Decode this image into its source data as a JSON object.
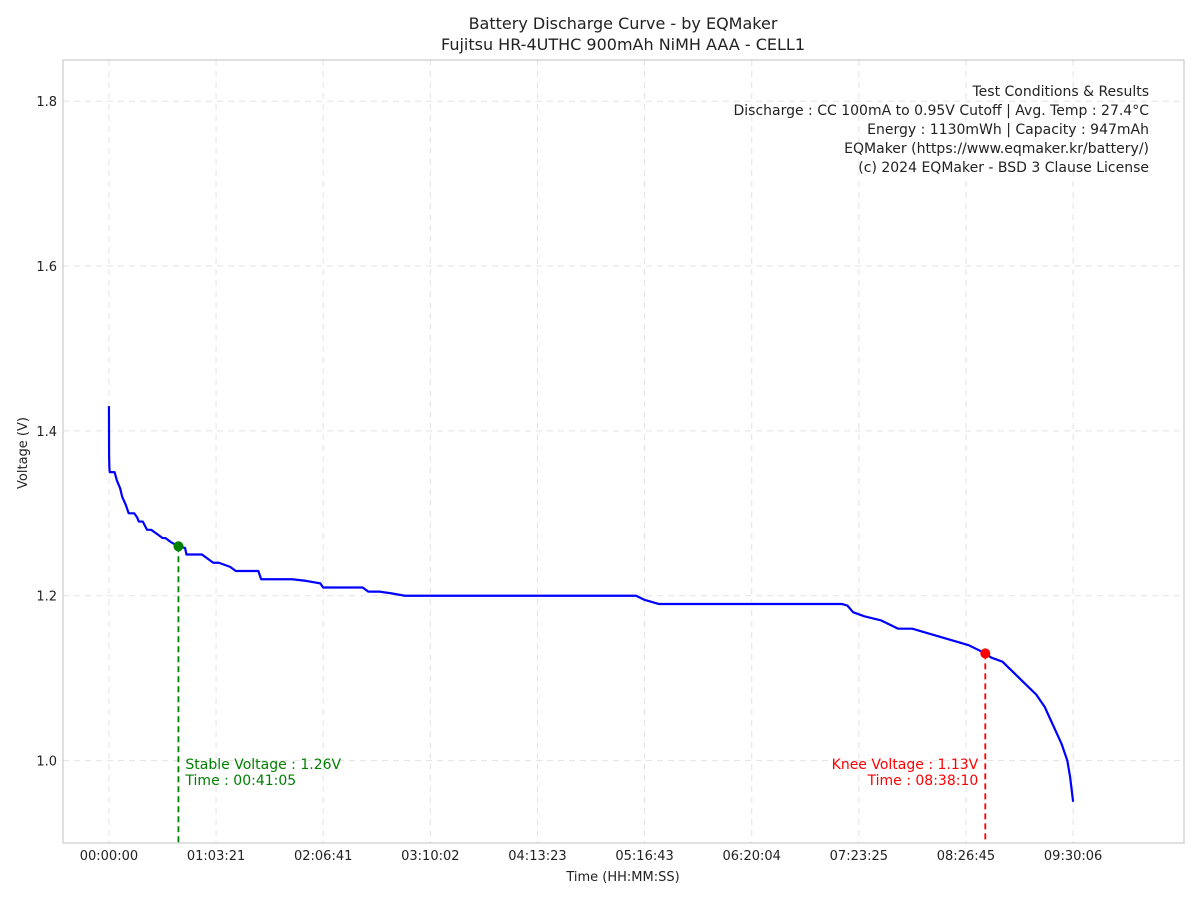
{
  "chart_data": {
    "type": "line",
    "title": "Battery Discharge Curve - by EQMaker",
    "subtitle": "Fujitsu HR-4UTHC 900mAh NiMH AAA - CELL1",
    "xlabel": "Time (HH:MM:SS)",
    "ylabel": "Voltage (V)",
    "xlim": [
      -1630,
      38140
    ],
    "ylim": [
      0.9,
      1.85
    ],
    "grid": true,
    "x_ticks": [
      {
        "value": 0,
        "label": "00:00:00"
      },
      {
        "value": 3801,
        "label": "01:03:21"
      },
      {
        "value": 7601,
        "label": "02:06:41"
      },
      {
        "value": 11402,
        "label": "03:10:02"
      },
      {
        "value": 15203,
        "label": "04:13:23"
      },
      {
        "value": 19003,
        "label": "05:16:43"
      },
      {
        "value": 22804,
        "label": "06:20:04"
      },
      {
        "value": 26605,
        "label": "07:23:25"
      },
      {
        "value": 30405,
        "label": "08:26:45"
      },
      {
        "value": 34206,
        "label": "09:30:06"
      }
    ],
    "y_ticks": [
      {
        "value": 1.0,
        "label": "1.0"
      },
      {
        "value": 1.2,
        "label": "1.2"
      },
      {
        "value": 1.4,
        "label": "1.4"
      },
      {
        "value": 1.6,
        "label": "1.6"
      },
      {
        "value": 1.8,
        "label": "1.8"
      }
    ],
    "series": [
      {
        "name": "Voltage",
        "color": "#0000ff",
        "x_seconds": [
          0,
          5,
          15,
          30,
          90,
          200,
          280,
          400,
          470,
          600,
          700,
          800,
          900,
          1000,
          1060,
          1200,
          1350,
          1500,
          1700,
          1900,
          2000,
          2200,
          2465,
          2700,
          2750,
          3000,
          3300,
          3500,
          3700,
          3900,
          4300,
          4500,
          5000,
          5300,
          5400,
          5700,
          6000,
          6500,
          7000,
          7500,
          7600,
          7700,
          8000,
          8500,
          9000,
          9200,
          9600,
          10000,
          10500,
          11000,
          11500,
          12000,
          13000,
          14000,
          15000,
          16000,
          17000,
          18000,
          18700,
          19000,
          19500,
          20000,
          21000,
          22000,
          23000,
          24000,
          25000,
          25500,
          26000,
          26200,
          26400,
          26800,
          27400,
          28000,
          28500,
          29000,
          29500,
          30000,
          30500,
          30800,
          31090,
          31300,
          31700,
          32000,
          32300,
          32600,
          32900,
          33200,
          33400,
          33600,
          33800,
          34000,
          34100,
          34206
        ],
        "voltage": [
          1.43,
          1.37,
          1.355,
          1.35,
          1.35,
          1.35,
          1.34,
          1.33,
          1.32,
          1.31,
          1.3,
          1.3,
          1.3,
          1.295,
          1.29,
          1.29,
          1.28,
          1.28,
          1.275,
          1.27,
          1.27,
          1.265,
          1.26,
          1.258,
          1.25,
          1.25,
          1.25,
          1.245,
          1.24,
          1.24,
          1.235,
          1.23,
          1.23,
          1.23,
          1.22,
          1.22,
          1.22,
          1.22,
          1.218,
          1.215,
          1.21,
          1.21,
          1.21,
          1.21,
          1.21,
          1.205,
          1.205,
          1.203,
          1.2,
          1.2,
          1.2,
          1.2,
          1.2,
          1.2,
          1.2,
          1.2,
          1.2,
          1.2,
          1.2,
          1.195,
          1.19,
          1.19,
          1.19,
          1.19,
          1.19,
          1.19,
          1.19,
          1.19,
          1.19,
          1.188,
          1.18,
          1.175,
          1.17,
          1.16,
          1.16,
          1.155,
          1.15,
          1.145,
          1.14,
          1.135,
          1.13,
          1.125,
          1.12,
          1.11,
          1.1,
          1.09,
          1.08,
          1.065,
          1.05,
          1.035,
          1.02,
          1.0,
          0.98,
          0.95
        ]
      }
    ],
    "markers": [
      {
        "name": "stable",
        "x": 2465,
        "y": 1.26,
        "color": "#008000",
        "label_lines": [
          "Stable Voltage : 1.26V",
          "Time : 00:41:05"
        ],
        "align": "left"
      },
      {
        "name": "knee",
        "x": 31090,
        "y": 1.13,
        "color": "#ff0000",
        "label_lines": [
          "Knee Voltage : 1.13V",
          "Time : 08:38:10"
        ],
        "align": "right"
      }
    ],
    "info_box": {
      "placement": "top-right",
      "lines": [
        "Test Conditions & Results",
        "Discharge : CC 100mA to 0.95V Cutoff | Avg. Temp : 27.4°C",
        "Energy : 1130mWh | Capacity : 947mAh",
        "EQMaker (https://www.eqmaker.kr/battery/)",
        "(c) 2024 EQMaker - BSD 3 Clause License"
      ]
    }
  }
}
